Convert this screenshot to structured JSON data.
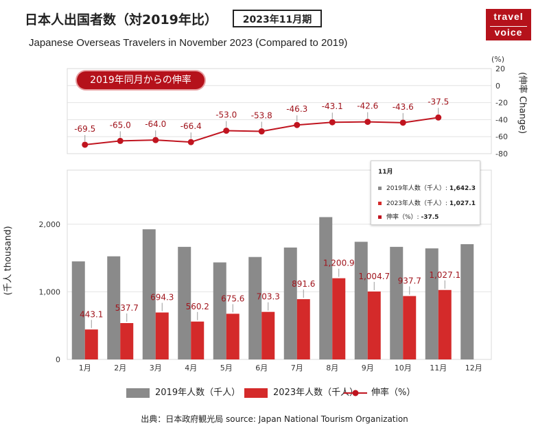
{
  "header": {
    "title": "日本人出国者数（対2019年比）",
    "period": "2023年11月期",
    "subtitle": "Japanese Overseas Travelers in November 2023 (Compared to 2019)",
    "logo_line1": "travel",
    "logo_line2": "voice"
  },
  "growth_badge": "2019年同月からの伸率",
  "tooltip": {
    "title": "11月",
    "row1_label": "2019年人数（千人）:",
    "row1_value": "1,642.3",
    "row2_label": "2023年人数（千人）:",
    "row2_value": "1,027.1",
    "row3_label": "伸率（%）:",
    "row3_value": "-37.5"
  },
  "legend": {
    "series_2019": "2019年人数（千人）",
    "series_2023": "2023年人数（千人）",
    "series_rate": "伸率（%）"
  },
  "source": "出典：日本政府観光局  source: Japan National Tourism Organization",
  "colors": {
    "bar2019": "#8a8a8a",
    "bar2023": "#d42a2a",
    "line": "#c0141f",
    "accent": "#b5121b"
  },
  "chart_data": {
    "type": "bar",
    "categories": [
      "1月",
      "2月",
      "3月",
      "4月",
      "5月",
      "6月",
      "7月",
      "8月",
      "9月",
      "10月",
      "11月",
      "12月"
    ],
    "series": [
      {
        "name": "2019年人数（千人）",
        "values": [
          1450,
          1525,
          1925,
          1665,
          1435,
          1515,
          1655,
          2105,
          1740,
          1665,
          1642.3,
          1705
        ]
      },
      {
        "name": "2023年人数（千人）",
        "values": [
          443.1,
          537.7,
          694.3,
          560.2,
          675.6,
          703.3,
          891.6,
          1200.9,
          1004.7,
          937.7,
          1027.1,
          null
        ],
        "labels": [
          "443.1",
          "537.7",
          "694.3",
          "560.2",
          "675.6",
          "703.3",
          "891.6",
          "1,200.9",
          "1,004.7",
          "937.7",
          "1,027.1",
          ""
        ]
      }
    ],
    "ylabel": "(千人 thousand)",
    "yticks": [
      "0",
      "1,000",
      "2,000"
    ],
    "ylim": [
      0,
      2800
    ],
    "growth": {
      "type": "line",
      "name": "伸率（%）",
      "values": [
        -69.5,
        -65.0,
        -64.0,
        -66.4,
        -53.0,
        -53.8,
        -46.3,
        -43.1,
        -42.6,
        -43.6,
        -37.5
      ],
      "labels": [
        "-69.5",
        "-65.0",
        "-64.0",
        "-66.4",
        "-53.0",
        "-53.8",
        "-46.3",
        "-43.1",
        "-42.6",
        "-43.6",
        "-37.5"
      ],
      "ylabel": "(伸率 Change)",
      "unit": "(%)",
      "yticks": [
        "20",
        "0",
        "-20",
        "-40",
        "-60",
        "-80"
      ],
      "ylim": [
        -80,
        20
      ]
    },
    "grid": true
  }
}
